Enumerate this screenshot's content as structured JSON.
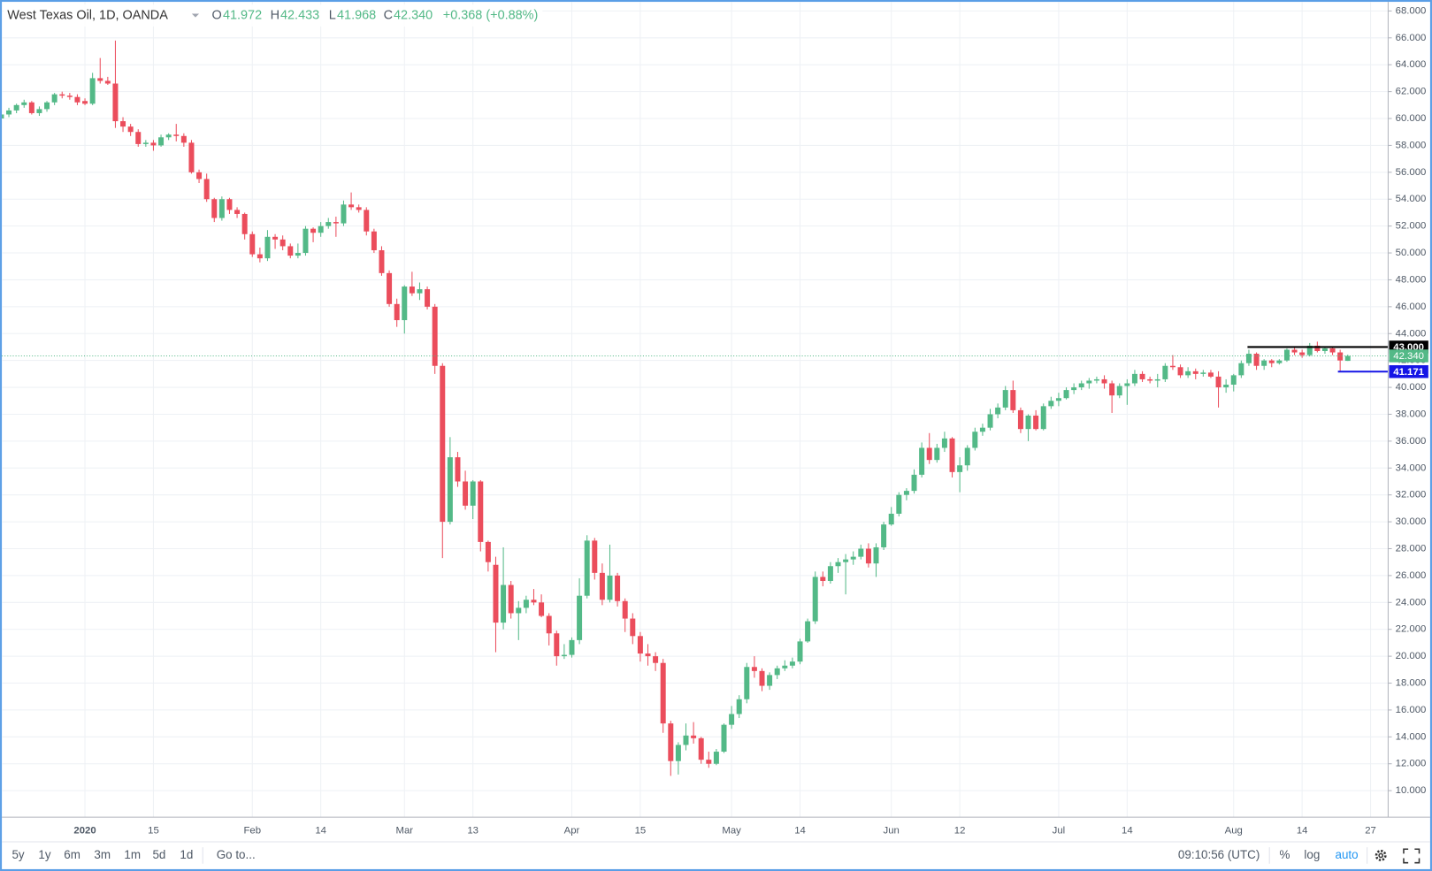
{
  "header": {
    "symbol": "West Texas Oil, 1D, OANDA",
    "open_label": "O",
    "open": "41.972",
    "high_label": "H",
    "high": "42.433",
    "low_label": "L",
    "low": "41.968",
    "close_label": "C",
    "close": "42.340",
    "change": "+0.368 (+0.88%)"
  },
  "toolbar": {
    "ranges": [
      "5y",
      "1y",
      "6m",
      "3m",
      "1m",
      "5d",
      "1d"
    ],
    "goto": "Go to...",
    "time": "09:10:56 (UTC)",
    "percent": "%",
    "log": "log",
    "auto": "auto"
  },
  "chart_data": {
    "type": "candlestick",
    "up_color": "#53b987",
    "down_color": "#eb4d5c",
    "grid": true,
    "categories": [
      null,
      null,
      null,
      null,
      null,
      null,
      null,
      null,
      null,
      null,
      null,
      "2020",
      null,
      null,
      null,
      null,
      null,
      null,
      null,
      null,
      "15",
      null,
      null,
      null,
      null,
      null,
      null,
      null,
      null,
      null,
      null,
      null,
      null,
      "Feb",
      null,
      null,
      null,
      null,
      null,
      null,
      null,
      null,
      "14",
      null,
      null,
      null,
      null,
      null,
      null,
      null,
      null,
      null,
      null,
      "Mar",
      null,
      null,
      null,
      null,
      null,
      null,
      null,
      null,
      "13",
      null,
      null,
      null,
      null,
      null,
      null,
      null,
      null,
      null,
      null,
      null,
      null,
      "Apr",
      null,
      null,
      null,
      null,
      null,
      null,
      null,
      null,
      "15",
      null,
      null,
      null,
      null,
      null,
      null,
      null,
      null,
      null,
      null,
      null,
      "May",
      null,
      null,
      null,
      null,
      null,
      null,
      null,
      null,
      "14",
      null,
      null,
      null,
      null,
      null,
      null,
      null,
      null,
      null,
      null,
      null,
      "Jun",
      null,
      null,
      null,
      null,
      null,
      null,
      null,
      null,
      "12",
      null,
      null,
      null,
      null,
      null,
      null,
      null,
      null,
      null,
      null,
      null,
      null,
      "Jul",
      null,
      null,
      null,
      null,
      null,
      null,
      null,
      null,
      "14",
      null,
      null,
      null,
      null,
      null,
      null,
      null,
      null,
      null,
      null,
      null,
      null,
      null,
      "Aug",
      null,
      null,
      null,
      null,
      null,
      null,
      null,
      null,
      "14",
      null,
      null,
      null,
      null,
      null,
      null,
      null,
      null,
      "27"
    ],
    "open": [
      60.0,
      60.3,
      60.6,
      61.0,
      61.2,
      60.4,
      60.7,
      61.2,
      61.8,
      61.7,
      61.6,
      61.3,
      61.1,
      63.0,
      62.8,
      62.6,
      59.8,
      59.4,
      59.0,
      58.1,
      58.2,
      58.0,
      58.6,
      58.8,
      58.7,
      58.2,
      56.0,
      55.5,
      54.0,
      52.6,
      54.0,
      53.2,
      52.9,
      51.4,
      49.9,
      49.6,
      51.2,
      51.0,
      50.5,
      49.8,
      50.0,
      51.8,
      51.5,
      52.0,
      52.3,
      52.2,
      53.6,
      53.4,
      53.2,
      51.6,
      50.2,
      48.5,
      46.2,
      45.0,
      47.5,
      47.0,
      47.3,
      46.0,
      41.6,
      30.0,
      34.8,
      33.0,
      31.2,
      33.0,
      28.5,
      26.8,
      22.5,
      25.3,
      23.2,
      23.6,
      24.2,
      24.0,
      23.0,
      21.7,
      20.0,
      20.1,
      21.2,
      24.5,
      28.6,
      26.2,
      24.2,
      26.0,
      24.1,
      22.8,
      21.5,
      20.2,
      20.0,
      19.5,
      15.0,
      12.2,
      13.4,
      14.1,
      13.9,
      12.3,
      12.0,
      12.9,
      14.9,
      15.7,
      16.8,
      19.2,
      18.9,
      17.8,
      18.6,
      19.1,
      19.3,
      19.6,
      21.1,
      22.6,
      25.9,
      25.6,
      26.7,
      27.0,
      27.2,
      27.4,
      28.0,
      26.9,
      28.1,
      29.8,
      30.6,
      32.0,
      32.3,
      33.5,
      35.5,
      34.6,
      35.5,
      36.2,
      33.7,
      34.2,
      35.5,
      36.7,
      37.0,
      38.0,
      38.5,
      39.8,
      38.3,
      36.9,
      37.9,
      36.9,
      38.6,
      39.0,
      39.2,
      39.8,
      40.0,
      40.3,
      40.5,
      40.6,
      40.3,
      39.4,
      40.1,
      40.3,
      41.0,
      40.6,
      40.5,
      40.6,
      41.6,
      41.5,
      40.9,
      41.2,
      41.0,
      41.1,
      40.8,
      40.0,
      40.2,
      40.9,
      41.8,
      42.5,
      41.6,
      42.0,
      41.8,
      42.0,
      42.8,
      42.6,
      42.4,
      43.1,
      42.7,
      42.9,
      42.6,
      41.972,
      null,
      null,
      null
    ],
    "high": [
      60.3,
      60.8,
      61.1,
      61.4,
      61.3,
      60.9,
      61.3,
      61.9,
      62.0,
      61.9,
      61.8,
      61.5,
      63.4,
      64.5,
      63.1,
      65.8,
      60.1,
      59.6,
      59.2,
      58.4,
      58.4,
      58.8,
      58.9,
      59.6,
      58.9,
      58.4,
      56.2,
      55.9,
      54.1,
      54.2,
      54.1,
      53.4,
      53.0,
      51.6,
      50.4,
      51.7,
      51.4,
      51.3,
      50.7,
      50.7,
      52.0,
      51.9,
      52.3,
      52.6,
      52.7,
      53.9,
      54.5,
      53.6,
      53.4,
      51.8,
      50.5,
      48.7,
      46.6,
      47.6,
      48.6,
      47.8,
      47.5,
      46.2,
      41.8,
      36.3,
      35.2,
      33.8,
      33.1,
      33.1,
      28.6,
      27.4,
      28.1,
      25.6,
      24.1,
      24.5,
      25.0,
      24.6,
      23.2,
      21.9,
      20.9,
      21.4,
      25.8,
      29.0,
      28.8,
      26.9,
      28.3,
      26.2,
      24.3,
      23.2,
      21.8,
      20.9,
      20.3,
      19.8,
      15.2,
      13.6,
      15.0,
      15.1,
      14.0,
      12.9,
      13.1,
      15.0,
      16.3,
      17.1,
      19.5,
      20.0,
      19.1,
      18.8,
      19.3,
      19.7,
      19.9,
      21.3,
      22.8,
      26.3,
      26.3,
      27.0,
      27.3,
      27.6,
      27.8,
      28.3,
      28.4,
      28.4,
      30.0,
      31.1,
      32.2,
      32.5,
      33.9,
      35.9,
      36.6,
      35.8,
      36.7,
      36.3,
      34.8,
      35.7,
      37.0,
      37.3,
      38.4,
      38.8,
      40.1,
      40.5,
      38.5,
      38.0,
      38.3,
      38.8,
      39.3,
      39.6,
      40.0,
      40.3,
      40.5,
      40.7,
      40.8,
      40.9,
      40.5,
      40.3,
      40.6,
      41.3,
      41.2,
      40.8,
      41.0,
      41.8,
      42.4,
      41.7,
      41.5,
      41.4,
      41.3,
      41.3,
      41.2,
      40.6,
      41.0,
      42.0,
      42.8,
      42.6,
      42.1,
      42.1,
      42.1,
      42.9,
      43.0,
      42.8,
      43.3,
      43.4,
      43.0,
      43.0,
      42.8,
      42.433,
      null,
      null,
      null
    ],
    "low": [
      59.7,
      60.1,
      60.4,
      60.8,
      60.3,
      60.2,
      60.5,
      61.0,
      61.5,
      61.4,
      61.0,
      61.0,
      61.0,
      62.6,
      62.5,
      59.3,
      59.0,
      58.7,
      57.9,
      57.9,
      57.6,
      57.9,
      58.4,
      58.3,
      57.9,
      55.9,
      55.2,
      53.8,
      52.3,
      52.4,
      52.9,
      52.6,
      51.0,
      49.7,
      49.3,
      49.4,
      50.3,
      50.2,
      49.6,
      49.6,
      49.8,
      50.8,
      51.2,
      51.8,
      51.2,
      52.0,
      53.2,
      53.0,
      51.3,
      50.0,
      48.3,
      46.0,
      44.5,
      44.0,
      46.8,
      46.5,
      45.8,
      41.0,
      27.3,
      29.8,
      32.6,
      30.9,
      30.2,
      27.8,
      26.3,
      20.3,
      22.0,
      22.8,
      21.2,
      23.2,
      23.8,
      22.9,
      20.8,
      19.3,
      19.8,
      19.9,
      20.9,
      24.3,
      25.7,
      23.8,
      24.0,
      23.7,
      21.8,
      20.9,
      19.6,
      19.3,
      18.9,
      14.3,
      11.1,
      11.2,
      13.0,
      13.5,
      12.0,
      11.7,
      11.9,
      12.8,
      14.6,
      15.4,
      16.5,
      18.4,
      17.4,
      17.5,
      18.3,
      18.9,
      19.1,
      19.4,
      21.0,
      22.4,
      25.2,
      25.4,
      26.2,
      24.6,
      26.8,
      27.2,
      26.6,
      25.9,
      27.9,
      29.7,
      30.4,
      31.6,
      32.1,
      33.3,
      34.3,
      34.4,
      35.2,
      33.3,
      32.2,
      33.8,
      35.3,
      36.4,
      36.8,
      37.7,
      38.3,
      38.1,
      36.6,
      36.0,
      36.8,
      36.8,
      38.4,
      38.6,
      39.1,
      39.5,
      39.8,
      39.9,
      40.3,
      39.9,
      38.1,
      39.2,
      38.7,
      40.1,
      40.4,
      40.3,
      40.0,
      40.4,
      41.3,
      40.7,
      40.7,
      40.6,
      40.8,
      40.7,
      38.5,
      39.6,
      39.7,
      40.7,
      41.6,
      41.3,
      41.3,
      41.5,
      41.7,
      41.9,
      42.4,
      42.2,
      42.3,
      42.6,
      42.5,
      42.4,
      41.2,
      41.968,
      null,
      null,
      null
    ],
    "close": [
      60.3,
      60.6,
      61.0,
      61.2,
      60.4,
      60.7,
      61.2,
      61.8,
      61.7,
      61.6,
      61.2,
      61.1,
      63.0,
      62.8,
      62.6,
      59.8,
      59.4,
      59.0,
      58.1,
      58.2,
      58.0,
      58.6,
      58.8,
      58.7,
      58.2,
      56.0,
      55.5,
      54.0,
      52.6,
      54.0,
      53.2,
      52.9,
      51.4,
      49.9,
      49.6,
      51.2,
      51.0,
      50.5,
      49.8,
      50.0,
      51.8,
      51.5,
      52.0,
      52.3,
      52.2,
      53.6,
      53.4,
      53.2,
      51.6,
      50.2,
      48.5,
      46.2,
      45.0,
      47.5,
      47.0,
      47.3,
      46.0,
      41.6,
      30.0,
      34.8,
      33.0,
      31.2,
      33.0,
      28.5,
      27.0,
      22.5,
      25.3,
      23.2,
      23.6,
      24.2,
      24.0,
      23.0,
      21.7,
      20.0,
      20.1,
      21.2,
      24.5,
      28.6,
      26.2,
      24.2,
      26.0,
      24.1,
      22.8,
      21.5,
      20.2,
      20.0,
      19.5,
      15.0,
      12.2,
      13.4,
      14.1,
      13.9,
      12.3,
      12.0,
      12.9,
      14.9,
      15.7,
      16.8,
      19.2,
      18.9,
      17.8,
      18.6,
      19.1,
      19.3,
      19.6,
      21.1,
      22.6,
      25.9,
      25.6,
      26.7,
      27.0,
      27.2,
      27.4,
      28.0,
      26.9,
      28.1,
      29.8,
      30.6,
      32.0,
      32.3,
      33.5,
      35.5,
      34.6,
      35.5,
      36.2,
      33.7,
      34.2,
      35.5,
      36.7,
      37.0,
      38.0,
      38.5,
      39.8,
      38.3,
      36.9,
      37.9,
      36.9,
      38.6,
      39.0,
      39.2,
      39.8,
      40.0,
      40.3,
      40.5,
      40.6,
      40.3,
      39.4,
      40.1,
      40.3,
      41.0,
      40.6,
      40.5,
      40.6,
      41.6,
      41.5,
      40.9,
      41.2,
      41.0,
      41.1,
      40.8,
      40.0,
      40.2,
      40.9,
      41.8,
      42.5,
      41.6,
      42.0,
      41.8,
      42.0,
      42.8,
      42.6,
      42.4,
      43.1,
      42.7,
      42.9,
      42.6,
      42.0,
      42.34,
      null,
      null,
      null
    ],
    "ylim": [
      8.03,
      68.68
    ],
    "yticks": [
      {
        "value": 10,
        "label": "10.000"
      },
      {
        "value": 12,
        "label": "12.000"
      },
      {
        "value": 14,
        "label": "14.000"
      },
      {
        "value": 16,
        "label": "16.000"
      },
      {
        "value": 18,
        "label": "18.000"
      },
      {
        "value": 20,
        "label": "20.000"
      },
      {
        "value": 22,
        "label": "22.000"
      },
      {
        "value": 24,
        "label": "24.000"
      },
      {
        "value": 26,
        "label": "26.000"
      },
      {
        "value": 28,
        "label": "28.000"
      },
      {
        "value": 30,
        "label": "30.000"
      },
      {
        "value": 32,
        "label": "32.000"
      },
      {
        "value": 34,
        "label": "34.000"
      },
      {
        "value": 36,
        "label": "36.000"
      },
      {
        "value": 38,
        "label": "38.000"
      },
      {
        "value": 40,
        "label": "40.000"
      },
      {
        "value": 42,
        "label": "42.000"
      },
      {
        "value": 44,
        "label": "44.000"
      },
      {
        "value": 46,
        "label": "46.000"
      },
      {
        "value": 48,
        "label": "48.000"
      },
      {
        "value": 50,
        "label": "50.000"
      },
      {
        "value": 52,
        "label": "52.000"
      },
      {
        "value": 54,
        "label": "54.000"
      },
      {
        "value": 56,
        "label": "56.000"
      },
      {
        "value": 58,
        "label": "58.000"
      },
      {
        "value": 60,
        "label": "60.000"
      },
      {
        "value": 62,
        "label": "62.000"
      },
      {
        "value": 64,
        "label": "64.000"
      },
      {
        "value": 66,
        "label": "66.000"
      },
      {
        "value": 68,
        "label": "68.000"
      }
    ],
    "current_price": {
      "value": 42.34,
      "label": "42.340"
    },
    "horizontal_lines": [
      {
        "value": 43,
        "label": "43.000",
        "color": "#000000"
      },
      {
        "value": 41.171,
        "label": "41.171",
        "color": "#1515e6"
      }
    ]
  }
}
